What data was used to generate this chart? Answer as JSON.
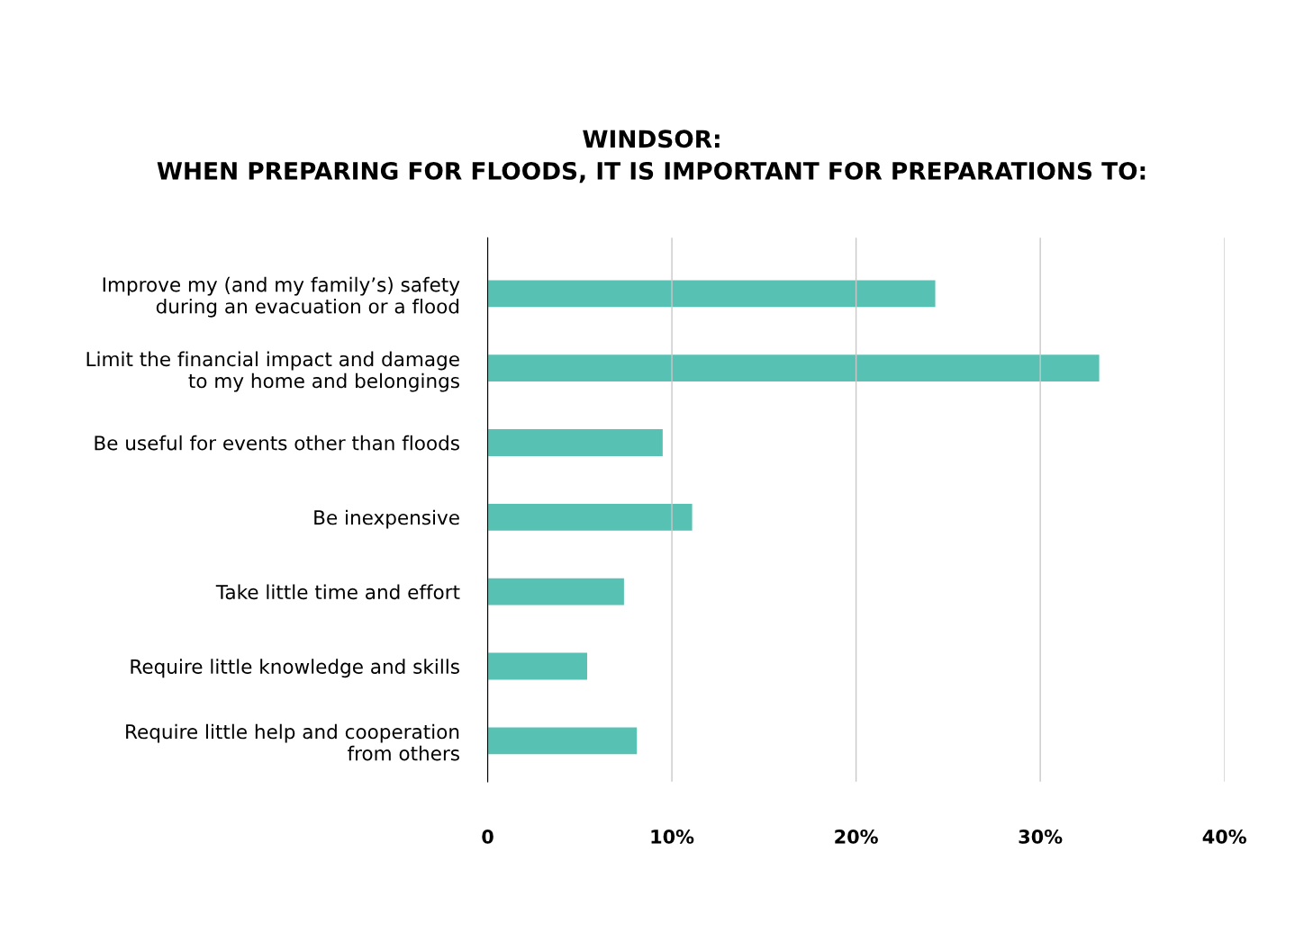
{
  "chart_data": {
    "type": "bar",
    "orientation": "horizontal",
    "title": "WINDSOR:\nWHEN PREPARING FOR FLOODS, IT IS IMPORTANT FOR PREPARATIONS TO:",
    "categories": [
      "Improve my (and my family’s) safety\nduring an evacuation or a flood",
      "Limit the financial impact and damage\nto my home and belongings",
      "Be useful for events other than floods",
      "Be inexpensive",
      "Take little time and effort",
      "Require little knowledge and skills",
      "Require little help and cooperation\nfrom others"
    ],
    "values": [
      24.3,
      33.2,
      9.5,
      11.1,
      7.4,
      5.4,
      8.1
    ],
    "color": "#57c2b3",
    "xlim": [
      0,
      40
    ],
    "xticks": [
      0,
      {
        "value": 10,
        "label": "10%"
      },
      {
        "value": 20,
        "label": "20%"
      },
      {
        "value": 30,
        "label": "30%"
      },
      {
        "value": 40,
        "label": "40%"
      }
    ],
    "grid": "x"
  }
}
